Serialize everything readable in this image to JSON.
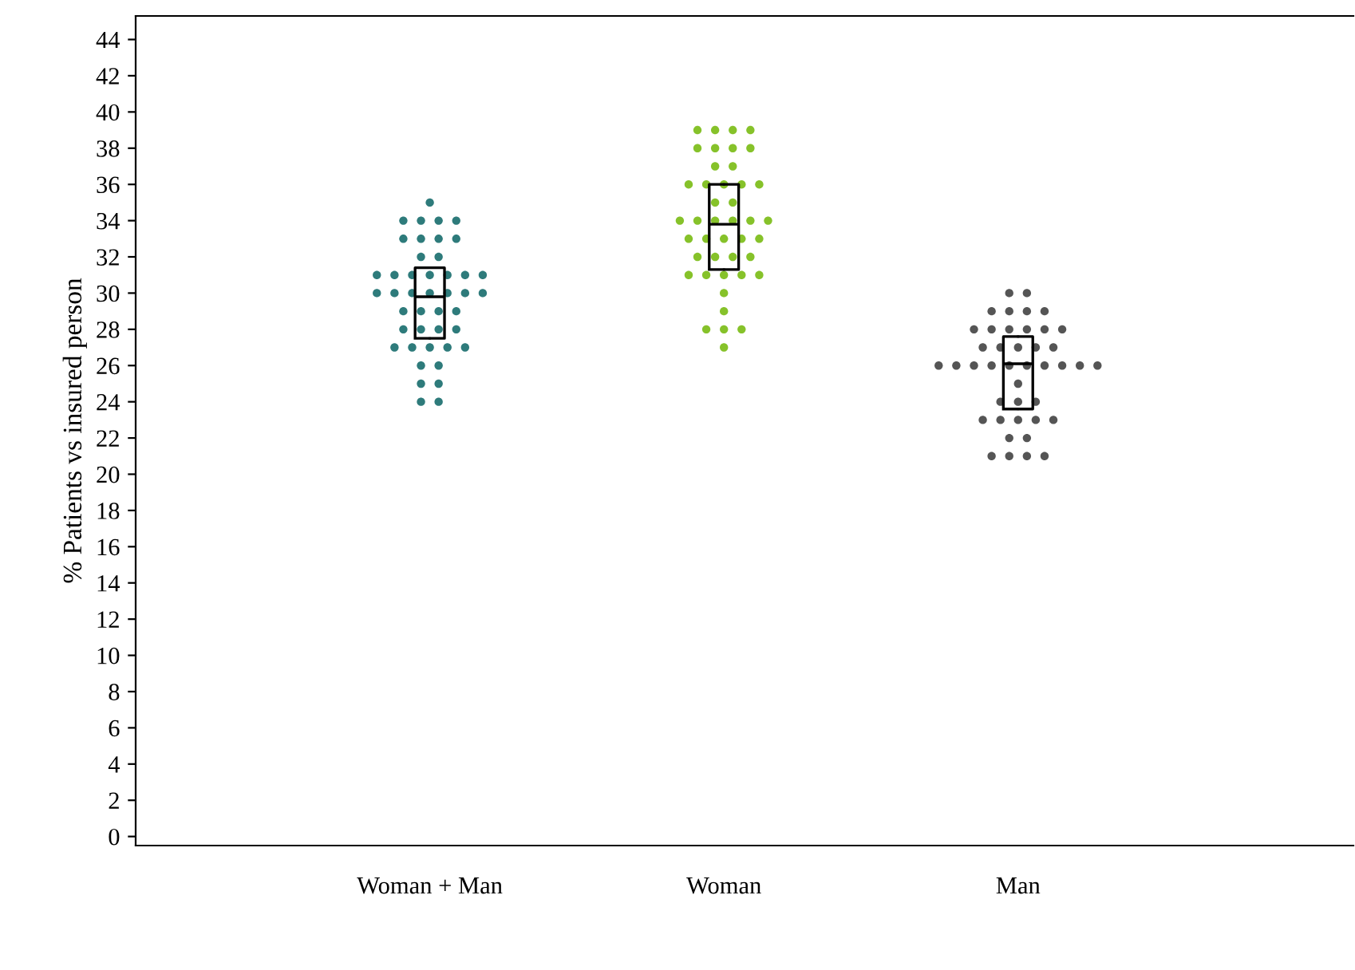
{
  "chart_data": {
    "type": "box",
    "ylabel": "% Patients vs insured person",
    "categories": [
      "Woman + Man",
      "Woman",
      "Man"
    ],
    "boxes": [
      {
        "low": 27.5,
        "q1": 27.5,
        "median": 29.8,
        "q3": 31.4,
        "high": 31.4
      },
      {
        "low": 31.3,
        "q1": 31.3,
        "median": 33.8,
        "q3": 36,
        "high": 36
      },
      {
        "low": 23.6,
        "q1": 23.6,
        "median": 26.1,
        "q3": 27.6,
        "high": 27.6
      }
    ],
    "series": [
      {
        "type": "scatter",
        "color": "#2e7b7b",
        "x": [
          "Woman + Man",
          "Woman + Man",
          "Woman + Man",
          "Woman + Man",
          "Woman + Man",
          "Woman + Man",
          "Woman + Man",
          "Woman + Man",
          "Woman + Man",
          "Woman + Man",
          "Woman + Man",
          "Woman + Man",
          "Woman + Man",
          "Woman + Man",
          "Woman + Man",
          "Woman + Man",
          "Woman + Man",
          "Woman + Man",
          "Woman + Man",
          "Woman + Man",
          "Woman + Man",
          "Woman + Man",
          "Woman + Man",
          "Woman + Man",
          "Woman + Man",
          "Woman + Man",
          "Woman + Man",
          "Woman + Man",
          "Woman + Man",
          "Woman + Man",
          "Woman + Man",
          "Woman + Man",
          "Woman + Man",
          "Woman + Man",
          "Woman + Man",
          "Woman + Man",
          "Woman + Man",
          "Woman + Man",
          "Woman + Man",
          "Woman + Man",
          "Woman + Man",
          "Woman + Man",
          "Woman + Man",
          "Woman + Man"
        ],
        "values": [
          35,
          34,
          34,
          34,
          34,
          33,
          33,
          33,
          33,
          32,
          32,
          31,
          31,
          31,
          31,
          31,
          31,
          31,
          30,
          30,
          30,
          30,
          30,
          30,
          30,
          29,
          29,
          29,
          29,
          28,
          28,
          28,
          28,
          27,
          27,
          27,
          27,
          27,
          26,
          26,
          25,
          25,
          24,
          24
        ]
      },
      {
        "type": "scatter",
        "color": "#86c22a",
        "x": [
          "Woman",
          "Woman",
          "Woman",
          "Woman",
          "Woman",
          "Woman",
          "Woman",
          "Woman",
          "Woman",
          "Woman",
          "Woman",
          "Woman",
          "Woman",
          "Woman",
          "Woman",
          "Woman",
          "Woman",
          "Woman",
          "Woman",
          "Woman",
          "Woman",
          "Woman",
          "Woman",
          "Woman",
          "Woman",
          "Woman",
          "Woman",
          "Woman",
          "Woman",
          "Woman",
          "Woman",
          "Woman",
          "Woman",
          "Woman",
          "Woman",
          "Woman",
          "Woman",
          "Woman",
          "Woman",
          "Woman",
          "Woman",
          "Woman",
          "Woman"
        ],
        "values": [
          39,
          39,
          39,
          39,
          38,
          38,
          38,
          38,
          37,
          37,
          36,
          36,
          36,
          36,
          36,
          35,
          35,
          34,
          34,
          34,
          34,
          34,
          34,
          33,
          33,
          33,
          33,
          33,
          32,
          32,
          32,
          32,
          31,
          31,
          31,
          31,
          31,
          30,
          29,
          28,
          28,
          28,
          27
        ]
      },
      {
        "type": "scatter",
        "color": "#555555",
        "x": [
          "Man",
          "Man",
          "Man",
          "Man",
          "Man",
          "Man",
          "Man",
          "Man",
          "Man",
          "Man",
          "Man",
          "Man",
          "Man",
          "Man",
          "Man",
          "Man",
          "Man",
          "Man",
          "Man",
          "Man",
          "Man",
          "Man",
          "Man",
          "Man",
          "Man",
          "Man",
          "Man",
          "Man",
          "Man",
          "Man",
          "Man",
          "Man",
          "Man",
          "Man",
          "Man",
          "Man",
          "Man",
          "Man",
          "Man",
          "Man",
          "Man",
          "Man"
        ],
        "values": [
          30,
          30,
          29,
          29,
          29,
          29,
          28,
          28,
          28,
          28,
          28,
          28,
          27,
          27,
          27,
          27,
          27,
          26,
          26,
          26,
          26,
          26,
          26,
          26,
          26,
          26,
          26,
          25,
          24,
          24,
          24,
          23,
          23,
          23,
          23,
          23,
          22,
          22,
          21,
          21,
          21,
          21
        ]
      }
    ],
    "ylim": [
      -0.5,
      45.3
    ],
    "yticks": [
      0,
      2,
      4,
      6,
      8,
      10,
      12,
      14,
      16,
      18,
      20,
      22,
      24,
      26,
      28,
      30,
      32,
      34,
      36,
      38,
      40,
      42,
      44
    ],
    "marker": "circle",
    "grid": false,
    "legend": false
  }
}
